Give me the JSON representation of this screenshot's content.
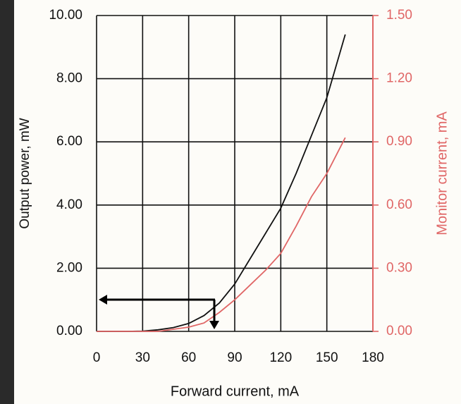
{
  "chart_data": {
    "type": "line",
    "xlabel": "Forward current, mA",
    "ylabel": "Output power, mW",
    "y2label": "Monitor current, mA",
    "x": [
      0,
      10,
      20,
      30,
      40,
      50,
      60,
      70,
      80,
      90,
      100,
      110,
      120,
      130,
      140,
      150,
      162
    ],
    "series": [
      {
        "color": "#111111",
        "values": [
          0,
          0,
          0,
          0.01,
          0.05,
          0.12,
          0.25,
          0.5,
          0.9,
          1.5,
          2.3,
          3.1,
          3.9,
          5.0,
          6.2,
          7.4,
          9.4
        ]
      },
      {
        "color": "#e06666",
        "axis": "y2",
        "values": [
          0,
          0,
          0,
          0,
          0,
          0.01,
          0.02,
          0.04,
          0.09,
          0.15,
          0.22,
          0.29,
          0.37,
          0.5,
          0.64,
          0.75,
          0.92
        ]
      }
    ],
    "xlim": [
      0,
      180
    ],
    "xticks": [
      0,
      30,
      60,
      90,
      120,
      150,
      180
    ],
    "ylim": [
      0,
      10
    ],
    "yticks": [
      {
        "value": 0,
        "label": "0.00"
      },
      {
        "value": 2,
        "label": "2.00"
      },
      {
        "value": 4,
        "label": "4.00"
      },
      {
        "value": 6,
        "label": "6.00"
      },
      {
        "value": 8,
        "label": "8.00"
      },
      {
        "value": 10,
        "label": "10.00"
      }
    ],
    "y2lim": [
      0,
      1.5
    ],
    "y2ticks": [
      {
        "value": 0,
        "label": "0.00"
      },
      {
        "value": 0.3,
        "label": "0.30"
      },
      {
        "value": 0.6,
        "label": "0.60"
      },
      {
        "value": 0.9,
        "label": "0.90"
      },
      {
        "value": 1.2,
        "label": "1.20"
      },
      {
        "value": 1.5,
        "label": "1.50"
      }
    ],
    "y2color": "#e06666",
    "grid": true
  }
}
